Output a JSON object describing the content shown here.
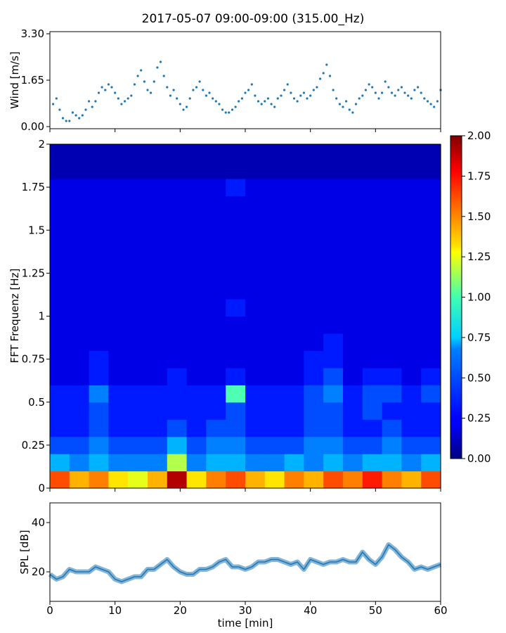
{
  "title": "2017-05-07 09:00-09:00 (315.00_Hz)",
  "chart_data": [
    {
      "type": "scatter",
      "panel": "wind",
      "ylabel": "Wind [m/s]",
      "ylim": [
        0.0,
        3.3
      ],
      "xlim": [
        0,
        60
      ],
      "yticks": [
        "0.00",
        "1.65",
        "3.30"
      ],
      "marker_color": "#1f77b4",
      "series": [
        {
          "x": [
            0.5,
            1,
            1.5,
            2,
            2.5,
            3,
            3.5,
            4,
            4.5,
            5,
            5.5,
            6,
            6.5,
            7,
            7.5,
            8,
            8.5,
            9,
            9.5,
            10,
            10.5,
            11,
            11.5,
            12,
            12.5,
            13,
            13.5,
            14,
            14.5,
            15,
            15.5,
            16,
            16.5,
            17,
            17.5,
            18,
            18.5,
            19,
            19.5,
            20,
            20.5,
            21,
            21.5,
            22,
            22.5,
            23,
            23.5,
            24,
            24.5,
            25,
            25.5,
            26,
            26.5,
            27,
            27.5,
            28,
            28.5,
            29,
            29.5,
            30,
            30.5,
            31,
            31.5,
            32,
            32.5,
            33,
            33.5,
            34,
            34.5,
            35,
            35.5,
            36,
            36.5,
            37,
            37.5,
            38,
            38.5,
            39,
            39.5,
            40,
            40.5,
            41,
            41.5,
            42,
            42.5,
            43,
            43.5,
            44,
            44.5,
            45,
            45.5,
            46,
            46.5,
            47,
            47.5,
            48,
            48.5,
            49,
            49.5,
            50,
            50.5,
            51,
            51.5,
            52,
            52.5,
            53,
            53.5,
            54,
            54.5,
            55,
            55.5,
            56,
            56.5,
            57,
            57.5,
            58,
            58.5,
            59,
            59.5,
            60
          ],
          "y": [
            0.8,
            1.0,
            0.6,
            0.3,
            0.2,
            0.2,
            0.5,
            0.4,
            0.3,
            0.4,
            0.6,
            0.9,
            0.7,
            0.9,
            1.2,
            1.4,
            1.3,
            1.5,
            1.4,
            1.2,
            1.0,
            0.8,
            0.9,
            1.0,
            1.1,
            1.5,
            1.8,
            2.0,
            1.6,
            1.3,
            1.2,
            1.6,
            2.1,
            2.3,
            1.8,
            1.4,
            1.1,
            1.3,
            1.0,
            0.8,
            0.6,
            0.7,
            1.0,
            1.3,
            1.4,
            1.6,
            1.3,
            1.1,
            1.2,
            1.0,
            0.9,
            0.8,
            0.6,
            0.5,
            0.5,
            0.6,
            0.7,
            0.9,
            1.0,
            1.2,
            1.3,
            1.5,
            1.1,
            0.9,
            0.8,
            0.9,
            1.0,
            0.8,
            0.7,
            1.0,
            1.1,
            1.3,
            1.5,
            1.2,
            1.0,
            0.9,
            1.1,
            1.2,
            1.0,
            1.1,
            1.3,
            1.4,
            1.7,
            1.9,
            2.2,
            1.8,
            1.3,
            1.0,
            0.8,
            0.7,
            0.9,
            0.6,
            0.5,
            0.8,
            1.0,
            1.1,
            1.3,
            1.5,
            1.4,
            1.2,
            1.0,
            1.2,
            1.6,
            1.4,
            1.2,
            1.1,
            1.3,
            1.4,
            1.2,
            1.1,
            1.0,
            1.3,
            1.4,
            1.2,
            1.0,
            0.9,
            0.8,
            0.7,
            0.9,
            1.3
          ]
        }
      ]
    },
    {
      "type": "heatmap",
      "panel": "spectrogram",
      "ylabel": "FFT Frequenz [Hz]",
      "ylim": [
        0,
        2
      ],
      "xlim": [
        0,
        60
      ],
      "yticks": [
        "0",
        "0.25",
        "0.5",
        "0.75",
        "1",
        "1.25",
        "1.5",
        "1.75",
        "2"
      ],
      "colormap": "jet",
      "clim": [
        0.0,
        2.0
      ],
      "colorbar_ticks": [
        "0.00",
        "0.25",
        "0.50",
        "0.75",
        "1.00",
        "1.25",
        "1.50",
        "1.75",
        "2.00"
      ],
      "freq_bins": [
        0.0,
        0.1,
        0.2,
        0.3,
        0.4,
        0.5,
        0.6,
        0.7,
        0.8,
        0.9,
        1.0,
        1.1,
        1.2,
        1.3,
        1.4,
        1.5,
        1.6,
        1.7,
        1.8,
        1.9
      ],
      "time_bins": [
        0,
        3,
        6,
        9,
        12,
        15,
        18,
        21,
        24,
        27,
        30,
        33,
        36,
        39,
        42,
        45,
        48,
        51,
        54,
        57
      ],
      "z": [
        [
          1.6,
          1.4,
          1.5,
          1.3,
          1.2,
          1.4,
          1.9,
          1.3,
          1.5,
          1.6,
          1.4,
          1.3,
          1.5,
          1.4,
          1.6,
          1.5,
          1.7,
          1.5,
          1.4,
          1.6
        ],
        [
          0.6,
          0.5,
          0.6,
          0.5,
          0.5,
          0.5,
          1.1,
          0.5,
          0.6,
          0.6,
          0.5,
          0.5,
          0.6,
          0.5,
          0.6,
          0.5,
          0.6,
          0.6,
          0.5,
          0.6
        ],
        [
          0.4,
          0.4,
          0.5,
          0.4,
          0.4,
          0.4,
          0.6,
          0.4,
          0.5,
          0.5,
          0.4,
          0.4,
          0.4,
          0.5,
          0.5,
          0.4,
          0.4,
          0.5,
          0.4,
          0.4
        ],
        [
          0.3,
          0.3,
          0.4,
          0.3,
          0.3,
          0.3,
          0.4,
          0.3,
          0.4,
          0.4,
          0.3,
          0.3,
          0.3,
          0.4,
          0.4,
          0.3,
          0.3,
          0.4,
          0.3,
          0.3
        ],
        [
          0.3,
          0.3,
          0.4,
          0.3,
          0.3,
          0.3,
          0.3,
          0.3,
          0.3,
          0.4,
          0.3,
          0.3,
          0.3,
          0.4,
          0.4,
          0.3,
          0.4,
          0.3,
          0.3,
          0.3
        ],
        [
          0.3,
          0.3,
          0.5,
          0.3,
          0.3,
          0.3,
          0.3,
          0.3,
          0.3,
          0.9,
          0.3,
          0.3,
          0.3,
          0.4,
          0.5,
          0.3,
          0.4,
          0.4,
          0.3,
          0.4
        ],
        [
          0.2,
          0.2,
          0.3,
          0.2,
          0.2,
          0.2,
          0.3,
          0.2,
          0.2,
          0.3,
          0.2,
          0.2,
          0.2,
          0.3,
          0.4,
          0.2,
          0.3,
          0.3,
          0.2,
          0.3
        ],
        [
          0.2,
          0.2,
          0.3,
          0.2,
          0.2,
          0.2,
          0.2,
          0.2,
          0.2,
          0.2,
          0.2,
          0.2,
          0.2,
          0.3,
          0.3,
          0.2,
          0.2,
          0.2,
          0.2,
          0.2
        ],
        [
          0.2,
          0.2,
          0.2,
          0.2,
          0.2,
          0.2,
          0.2,
          0.2,
          0.2,
          0.2,
          0.2,
          0.2,
          0.2,
          0.2,
          0.3,
          0.2,
          0.2,
          0.2,
          0.2,
          0.2
        ],
        [
          0.2,
          0.2,
          0.2,
          0.2,
          0.2,
          0.2,
          0.2,
          0.2,
          0.2,
          0.2,
          0.2,
          0.2,
          0.2,
          0.2,
          0.2,
          0.2,
          0.2,
          0.2,
          0.2,
          0.2
        ],
        [
          0.2,
          0.2,
          0.2,
          0.2,
          0.2,
          0.2,
          0.2,
          0.2,
          0.2,
          0.3,
          0.2,
          0.2,
          0.2,
          0.2,
          0.2,
          0.2,
          0.2,
          0.2,
          0.2,
          0.2
        ],
        [
          0.2,
          0.2,
          0.2,
          0.2,
          0.2,
          0.2,
          0.2,
          0.2,
          0.2,
          0.2,
          0.2,
          0.2,
          0.2,
          0.2,
          0.2,
          0.2,
          0.2,
          0.2,
          0.2,
          0.2
        ],
        [
          0.2,
          0.2,
          0.2,
          0.2,
          0.2,
          0.2,
          0.2,
          0.2,
          0.2,
          0.2,
          0.2,
          0.2,
          0.2,
          0.2,
          0.2,
          0.2,
          0.2,
          0.2,
          0.2,
          0.2
        ],
        [
          0.2,
          0.2,
          0.2,
          0.2,
          0.2,
          0.2,
          0.2,
          0.2,
          0.2,
          0.2,
          0.2,
          0.2,
          0.2,
          0.2,
          0.2,
          0.2,
          0.2,
          0.2,
          0.2,
          0.2
        ],
        [
          0.2,
          0.2,
          0.2,
          0.2,
          0.2,
          0.2,
          0.2,
          0.2,
          0.2,
          0.2,
          0.2,
          0.2,
          0.2,
          0.2,
          0.2,
          0.2,
          0.2,
          0.2,
          0.2,
          0.2
        ],
        [
          0.2,
          0.2,
          0.2,
          0.2,
          0.2,
          0.2,
          0.2,
          0.2,
          0.2,
          0.2,
          0.2,
          0.2,
          0.2,
          0.2,
          0.2,
          0.2,
          0.2,
          0.2,
          0.2,
          0.2
        ],
        [
          0.2,
          0.2,
          0.2,
          0.2,
          0.2,
          0.2,
          0.2,
          0.2,
          0.2,
          0.2,
          0.2,
          0.2,
          0.2,
          0.2,
          0.2,
          0.2,
          0.2,
          0.2,
          0.2,
          0.2
        ],
        [
          0.2,
          0.2,
          0.2,
          0.2,
          0.2,
          0.2,
          0.2,
          0.2,
          0.2,
          0.3,
          0.2,
          0.2,
          0.2,
          0.2,
          0.2,
          0.2,
          0.2,
          0.2,
          0.2,
          0.2
        ],
        [
          0.1,
          0.1,
          0.1,
          0.1,
          0.1,
          0.1,
          0.1,
          0.1,
          0.1,
          0.1,
          0.1,
          0.1,
          0.1,
          0.1,
          0.1,
          0.1,
          0.1,
          0.1,
          0.1,
          0.1
        ],
        [
          0.1,
          0.1,
          0.1,
          0.1,
          0.1,
          0.1,
          0.1,
          0.1,
          0.1,
          0.1,
          0.1,
          0.1,
          0.1,
          0.1,
          0.1,
          0.1,
          0.1,
          0.1,
          0.1,
          0.1
        ]
      ]
    },
    {
      "type": "line",
      "panel": "spl",
      "ylabel": "SPL [dB]",
      "xlabel": "time [min]",
      "xlim": [
        0,
        60
      ],
      "ylim": [
        8,
        48
      ],
      "xticks": [
        "0",
        "10",
        "20",
        "30",
        "40",
        "50",
        "60"
      ],
      "yticks": [
        "20",
        "40"
      ],
      "line_color": "#1f77b4",
      "series": [
        {
          "x": [
            0,
            1,
            2,
            3,
            4,
            5,
            6,
            7,
            8,
            9,
            10,
            11,
            12,
            13,
            14,
            15,
            16,
            17,
            18,
            19,
            20,
            21,
            22,
            23,
            24,
            25,
            26,
            27,
            28,
            29,
            30,
            31,
            32,
            33,
            34,
            35,
            36,
            37,
            38,
            39,
            40,
            41,
            42,
            43,
            44,
            45,
            46,
            47,
            48,
            49,
            50,
            51,
            52,
            53,
            54,
            55,
            56,
            57,
            58,
            59,
            60
          ],
          "y": [
            19,
            17,
            18,
            21,
            20,
            20,
            20,
            22,
            21,
            20,
            17,
            16,
            17,
            18,
            18,
            21,
            21,
            23,
            25,
            22,
            20,
            19,
            19,
            21,
            21,
            22,
            24,
            25,
            22,
            22,
            21,
            22,
            24,
            24,
            25,
            25,
            24,
            23,
            24,
            21,
            25,
            24,
            23,
            24,
            24,
            25,
            24,
            24,
            28,
            25,
            23,
            26,
            31,
            29,
            26,
            24,
            21,
            22,
            21,
            22,
            23
          ]
        }
      ]
    }
  ]
}
